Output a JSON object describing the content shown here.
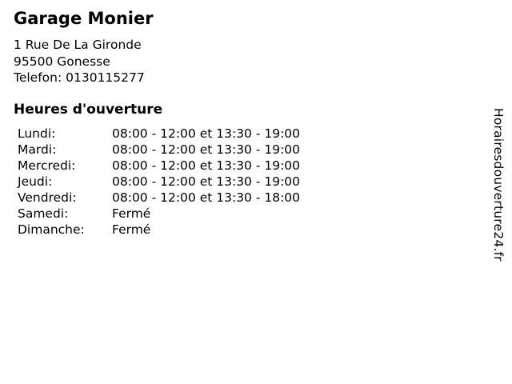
{
  "business": {
    "name": "Garage Monier",
    "address_line1": "1 Rue De La Gironde",
    "address_line2": "95500 Gonesse",
    "phone": "Telefon: 0130115277"
  },
  "hours": {
    "heading": "Heures d'ouverture",
    "rows": [
      {
        "day": "Lundi:",
        "time": "08:00 - 12:00 et 13:30 - 19:00"
      },
      {
        "day": "Mardi:",
        "time": "08:00 - 12:00 et 13:30 - 19:00"
      },
      {
        "day": "Mercredi:",
        "time": "08:00 - 12:00 et 13:30 - 19:00"
      },
      {
        "day": "Jeudi:",
        "time": "08:00 - 12:00 et 13:30 - 19:00"
      },
      {
        "day": "Vendredi:",
        "time": "08:00 - 12:00 et 13:30 - 18:00"
      },
      {
        "day": "Samedi:",
        "time": "Fermé"
      },
      {
        "day": "Dimanche:",
        "time": "Fermé"
      }
    ]
  },
  "watermark": {
    "text": "Horairesdouverture24.fr"
  },
  "colors": {
    "text": "#000000",
    "background": "#ffffff"
  }
}
